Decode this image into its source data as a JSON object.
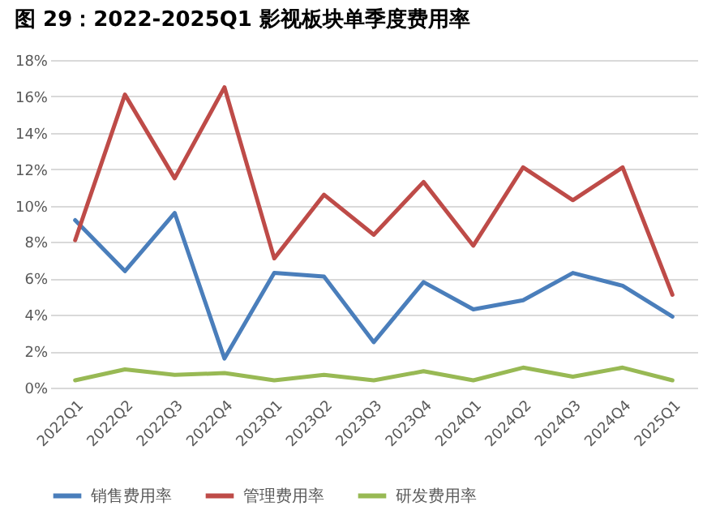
{
  "chart_data": {
    "type": "line",
    "title": "图 29：2022-2025Q1 影视板块单季度费用率",
    "categories": [
      "2022Q1",
      "2022Q2",
      "2022Q3",
      "2022Q4",
      "2023Q1",
      "2023Q2",
      "2023Q3",
      "2023Q4",
      "2024Q1",
      "2024Q2",
      "2024Q3",
      "2024Q4",
      "2025Q1"
    ],
    "series": [
      {
        "name": "销售费用率",
        "color": "#4a7ebb",
        "values": [
          9.2,
          6.4,
          9.6,
          1.6,
          6.3,
          6.1,
          2.5,
          5.8,
          4.3,
          4.8,
          6.3,
          5.6,
          3.9
        ]
      },
      {
        "name": "管理费用率",
        "color": "#be4b48",
        "values": [
          8.1,
          16.1,
          11.5,
          16.5,
          7.1,
          10.6,
          8.4,
          11.3,
          7.8,
          12.1,
          10.3,
          12.1,
          5.1
        ]
      },
      {
        "name": "研发费用率",
        "color": "#98b954",
        "values": [
          0.4,
          1.0,
          0.7,
          0.8,
          0.4,
          0.7,
          0.4,
          0.9,
          0.4,
          1.1,
          0.6,
          1.1,
          0.4
        ]
      }
    ],
    "ylim": [
      0,
      18
    ],
    "yticks": [
      {
        "value": 0,
        "label": "0%"
      },
      {
        "value": 2,
        "label": "2%"
      },
      {
        "value": 4,
        "label": "4%"
      },
      {
        "value": 6,
        "label": "6%"
      },
      {
        "value": 8,
        "label": "8%"
      },
      {
        "value": 10,
        "label": "10%"
      },
      {
        "value": 12,
        "label": "12%"
      },
      {
        "value": 14,
        "label": "14%"
      },
      {
        "value": 16,
        "label": "16%"
      },
      {
        "value": 18,
        "label": "18%"
      }
    ],
    "grid": "y",
    "legend": "bottom",
    "marker": "none",
    "line_style": "solid"
  }
}
